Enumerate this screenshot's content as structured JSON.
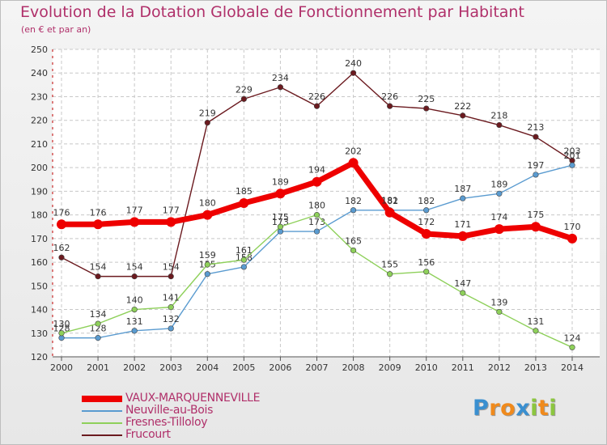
{
  "title": "Evolution de la Dotation Globale de Fonctionnement par Habitant",
  "subtitle": "(en € et par an)",
  "logo": {
    "text": "Proxiti",
    "letters": [
      "P",
      "r",
      "o",
      "x",
      "i",
      "t",
      "i"
    ],
    "colors": [
      "#3a8fd0",
      "#f08a1c",
      "#f08a1c",
      "#3a8fd0",
      "#8cc63f",
      "#f08a1c",
      "#8cc63f"
    ]
  },
  "chart_data": {
    "type": "line",
    "categories": [
      "2000",
      "2001",
      "2002",
      "2003",
      "2004",
      "2005",
      "2006",
      "2007",
      "2008",
      "2009",
      "2010",
      "2011",
      "2012",
      "2013",
      "2014"
    ],
    "ylim": [
      120,
      250
    ],
    "yticks": [
      120,
      130,
      140,
      150,
      160,
      170,
      180,
      190,
      200,
      210,
      220,
      230,
      240,
      250
    ],
    "xlabel": "",
    "ylabel": "",
    "legend_position": "bottom-left",
    "series": [
      {
        "name": "Frucourt",
        "color": "#6b1a1f",
        "values": [
          162,
          154,
          154,
          154,
          219,
          229,
          234,
          226,
          240,
          226,
          225,
          222,
          218,
          213,
          203
        ]
      },
      {
        "name": "Neuville-au-Bois",
        "color": "#5a9bd0",
        "values": [
          128,
          128,
          131,
          132,
          155,
          158,
          173,
          173,
          182,
          182,
          182,
          187,
          189,
          197,
          201
        ]
      },
      {
        "name": "Fresnes-Tilloloy",
        "color": "#8ed05a",
        "values": [
          130,
          134,
          140,
          141,
          159,
          161,
          175,
          180,
          165,
          155,
          156,
          147,
          139,
          131,
          124
        ]
      },
      {
        "name": "VAUX-MARQUENNEVILLE",
        "color": "#ee0000",
        "values": [
          176,
          176,
          177,
          177,
          180,
          185,
          189,
          194,
          202,
          181,
          172,
          171,
          174,
          175,
          170
        ]
      }
    ],
    "legend_order": [
      "VAUX-MARQUENNEVILLE",
      "Neuville-au-Bois",
      "Fresnes-Tilloloy",
      "Frucourt"
    ]
  }
}
